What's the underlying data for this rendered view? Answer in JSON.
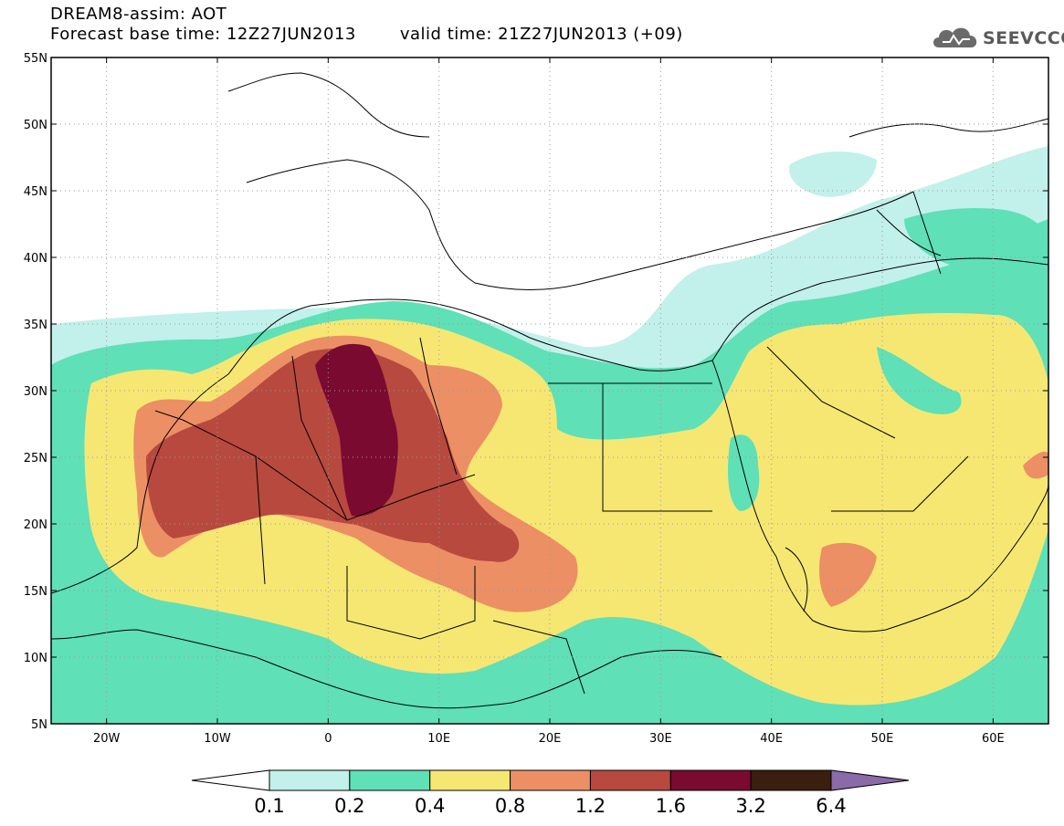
{
  "header": {
    "title": "DREAM8-assim: AOT",
    "base_time": "Forecast base time: 12Z27JUN2013",
    "valid_time": "valid time: 21Z27JUN2013 (+09)",
    "logo_text": "SEEVCCC"
  },
  "axes": {
    "lat_labels": [
      "55N",
      "50N",
      "45N",
      "40N",
      "35N",
      "30N",
      "25N",
      "20N",
      "15N",
      "10N",
      "5N"
    ],
    "lat_values": [
      55,
      50,
      45,
      40,
      35,
      30,
      25,
      20,
      15,
      10,
      5
    ],
    "lon_labels": [
      "20W",
      "10W",
      "0",
      "10E",
      "20E",
      "30E",
      "40E",
      "50E",
      "60E"
    ],
    "lon_values": [
      -20,
      -10,
      0,
      10,
      20,
      30,
      40,
      50,
      60
    ],
    "lon_range": [
      -25,
      65
    ],
    "lat_range": [
      5,
      55
    ],
    "grid": "dotted"
  },
  "colorbar": {
    "labels": [
      "0.1",
      "0.2",
      "0.4",
      "0.8",
      "1.2",
      "1.6",
      "3.2",
      "6.4"
    ],
    "colors": [
      "#ffffff",
      "#c2f0ea",
      "#5fe0b7",
      "#f6e773",
      "#ec8f64",
      "#b7493f",
      "#7a0a30",
      "#3a1e0e",
      "#8a6aa8"
    ]
  }
}
